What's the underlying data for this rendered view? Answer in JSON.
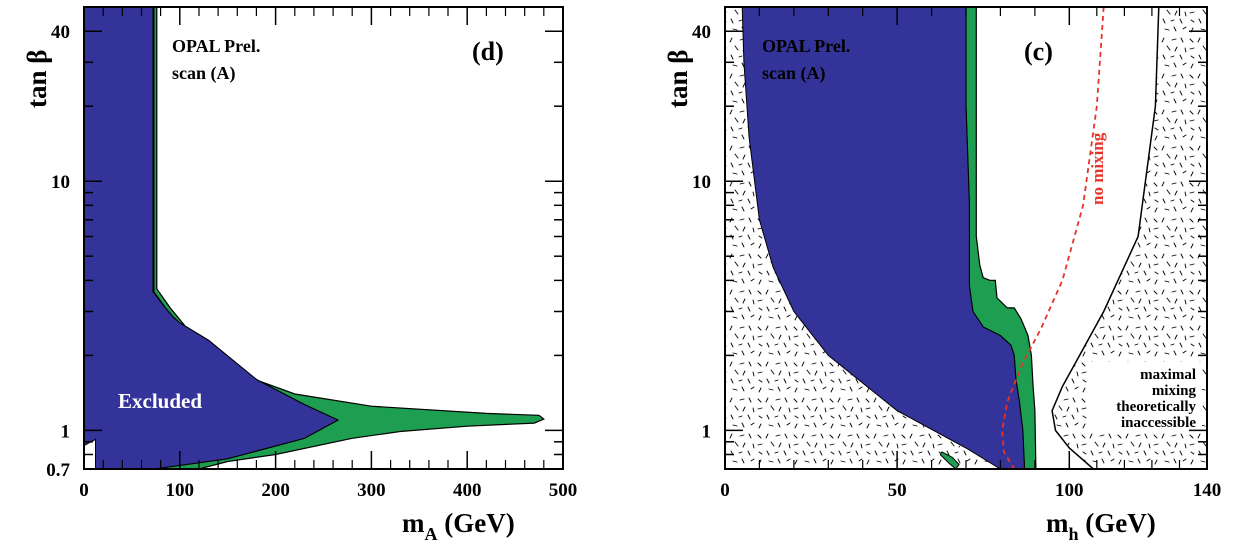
{
  "colors": {
    "excluded": "#333399",
    "band": "#1e9e50",
    "no_mixing": "#e8332a",
    "frame": "#000000"
  },
  "panels": {
    "d": {
      "tag": "(d)",
      "experiment": "OPAL Prel.",
      "scan": "scan (A)",
      "excluded_label": "Excluded",
      "xlabel_main": "m",
      "xlabel_sub": "A",
      "xlabel_unit": " (GeV)",
      "ylabel": "tan β",
      "x_ticks": [
        "0",
        "100",
        "200",
        "300",
        "400",
        "500"
      ],
      "y_ticks": [
        "0.7",
        "1",
        "10",
        "40"
      ]
    },
    "c": {
      "tag": "(c)",
      "experiment": "OPAL Prel.",
      "scan": "scan (A)",
      "no_mixing_label": "no mixing",
      "inaccessible_lines": [
        "maximal",
        "mixing",
        "theoretically",
        "inaccessible"
      ],
      "xlabel_main": "m",
      "xlabel_sub": "h",
      "xlabel_unit": " (GeV)",
      "ylabel": "tan β",
      "x_ticks": [
        "0",
        "50",
        "100",
        "140"
      ],
      "y_ticks": [
        "1",
        "10",
        "40"
      ]
    }
  },
  "chart_data": [
    {
      "type": "area",
      "panel": "(d)",
      "xlabel": "mA (GeV)",
      "ylabel": "tan β",
      "xlim": [
        0,
        500
      ],
      "ylim": [
        0.7,
        50
      ],
      "y_scale": "log",
      "x_ticks": [
        0,
        100,
        200,
        300,
        400,
        500
      ],
      "y_ticks": [
        0.7,
        1,
        10,
        40
      ],
      "regions": [
        {
          "name": "Excluded",
          "points": [
            [
              0,
              0.87
            ],
            [
              12,
              0.92
            ],
            [
              12,
              0.7
            ],
            [
              73,
              0.7
            ],
            [
              150,
              0.77
            ],
            [
              230,
              0.93
            ],
            [
              265,
              1.1
            ],
            [
              230,
              1.27
            ],
            [
              180,
              1.6
            ],
            [
              130,
              2.3
            ],
            [
              100,
              2.7
            ],
            [
              93,
              2.85
            ],
            [
              85,
              3.1
            ],
            [
              72,
              3.6
            ],
            [
              72,
              50
            ],
            [
              0,
              50
            ]
          ]
        },
        {
          "points": [
            [
              73,
              50
            ],
            [
              76,
              50
            ],
            [
              76,
              3.7
            ],
            [
              90,
              3.1
            ],
            [
              110,
              2.5
            ],
            [
              160,
              1.7
            ],
            [
              220,
              1.4
            ],
            [
              300,
              1.25
            ],
            [
              420,
              1.17
            ],
            [
              475,
              1.15
            ],
            [
              480,
              1.11
            ],
            [
              470,
              1.07
            ],
            [
              400,
              1.04
            ],
            [
              330,
              0.99
            ],
            [
              280,
              0.93
            ],
            [
              200,
              0.8
            ],
            [
              150,
              0.75
            ],
            [
              120,
              0.7
            ],
            [
              73,
              0.7
            ],
            [
              150,
              0.77
            ],
            [
              230,
              0.93
            ],
            [
              265,
              1.1
            ],
            [
              230,
              1.27
            ],
            [
              180,
              1.6
            ],
            [
              130,
              2.3
            ],
            [
              100,
              2.7
            ],
            [
              93,
              2.85
            ],
            [
              85,
              3.1
            ],
            [
              73,
              3.6
            ]
          ]
        }
      ]
    },
    {
      "type": "area",
      "panel": "(c)",
      "xlabel": "mh (GeV)",
      "ylabel": "tan β",
      "xlim": [
        0,
        140
      ],
      "ylim": [
        0.7,
        50
      ],
      "y_scale": "log",
      "x_ticks": [
        0,
        50,
        100,
        140
      ],
      "y_ticks": [
        1,
        10,
        40
      ],
      "regions": [
        {
          "name": "Excluded",
          "points": [
            [
              5,
              50
            ],
            [
              70,
              50
            ],
            [
              70,
              20
            ],
            [
              71,
              8
            ],
            [
              71,
              3.8
            ],
            [
              72,
              3.0
            ],
            [
              75,
              2.6
            ],
            [
              80,
              2.4
            ],
            [
              83,
              2.2
            ],
            [
              84,
              2.0
            ],
            [
              84.5,
              1.6
            ],
            [
              85.5,
              1.3
            ],
            [
              86.5,
              1.0
            ],
            [
              87,
              0.7
            ],
            [
              80,
              0.7
            ],
            [
              70,
              0.85
            ],
            [
              50,
              1.2
            ],
            [
              30,
              2.0
            ],
            [
              20,
              3.0
            ],
            [
              14,
              4.5
            ],
            [
              10,
              7
            ],
            [
              7,
              15
            ],
            [
              5.5,
              30
            ]
          ]
        },
        {
          "points": [
            [
              70,
              50
            ],
            [
              73,
              50
            ],
            [
              73,
              20
            ],
            [
              73,
              6
            ],
            [
              74,
              4.6
            ],
            [
              75,
              4.1
            ],
            [
              77,
              4.0
            ],
            [
              78.5,
              4.0
            ],
            [
              79,
              3.4
            ],
            [
              82,
              3.1
            ],
            [
              84,
              3.1
            ],
            [
              86,
              2.8
            ],
            [
              88,
              2.4
            ],
            [
              89,
              2.0
            ],
            [
              89.5,
              1.5
            ],
            [
              90,
              1.2
            ],
            [
              90.3,
              0.7
            ],
            [
              87,
              0.7
            ],
            [
              86.5,
              1.0
            ],
            [
              85.5,
              1.3
            ],
            [
              84.5,
              1.6
            ],
            [
              84,
              2.0
            ],
            [
              83,
              2.2
            ],
            [
              80,
              2.4
            ],
            [
              75,
              2.6
            ],
            [
              72,
              3.0
            ],
            [
              71,
              3.8
            ],
            [
              71,
              8
            ],
            [
              70,
              20
            ]
          ]
        }
      ],
      "curves": [
        {
          "name": "no mixing",
          "points": [
            [
              110,
              50
            ],
            [
              108,
              20
            ],
            [
              104,
              8
            ],
            [
              98,
              4
            ],
            [
              92,
              2.6
            ],
            [
              86,
              1.8
            ],
            [
              82,
              1.3
            ],
            [
              80.5,
              1.0
            ],
            [
              81,
              0.82
            ],
            [
              84,
              0.7
            ]
          ]
        },
        {
          "name": "maximal mixing",
          "points": [
            [
              126,
              50
            ],
            [
              125,
              20
            ],
            [
              120,
              6
            ],
            [
              110,
              3
            ],
            [
              103,
              2
            ],
            [
              98,
              1.5
            ],
            [
              95,
              1.2
            ],
            [
              96,
              1.0
            ],
            [
              100,
              0.85
            ],
            [
              107,
              0.7
            ]
          ]
        }
      ]
    }
  ]
}
